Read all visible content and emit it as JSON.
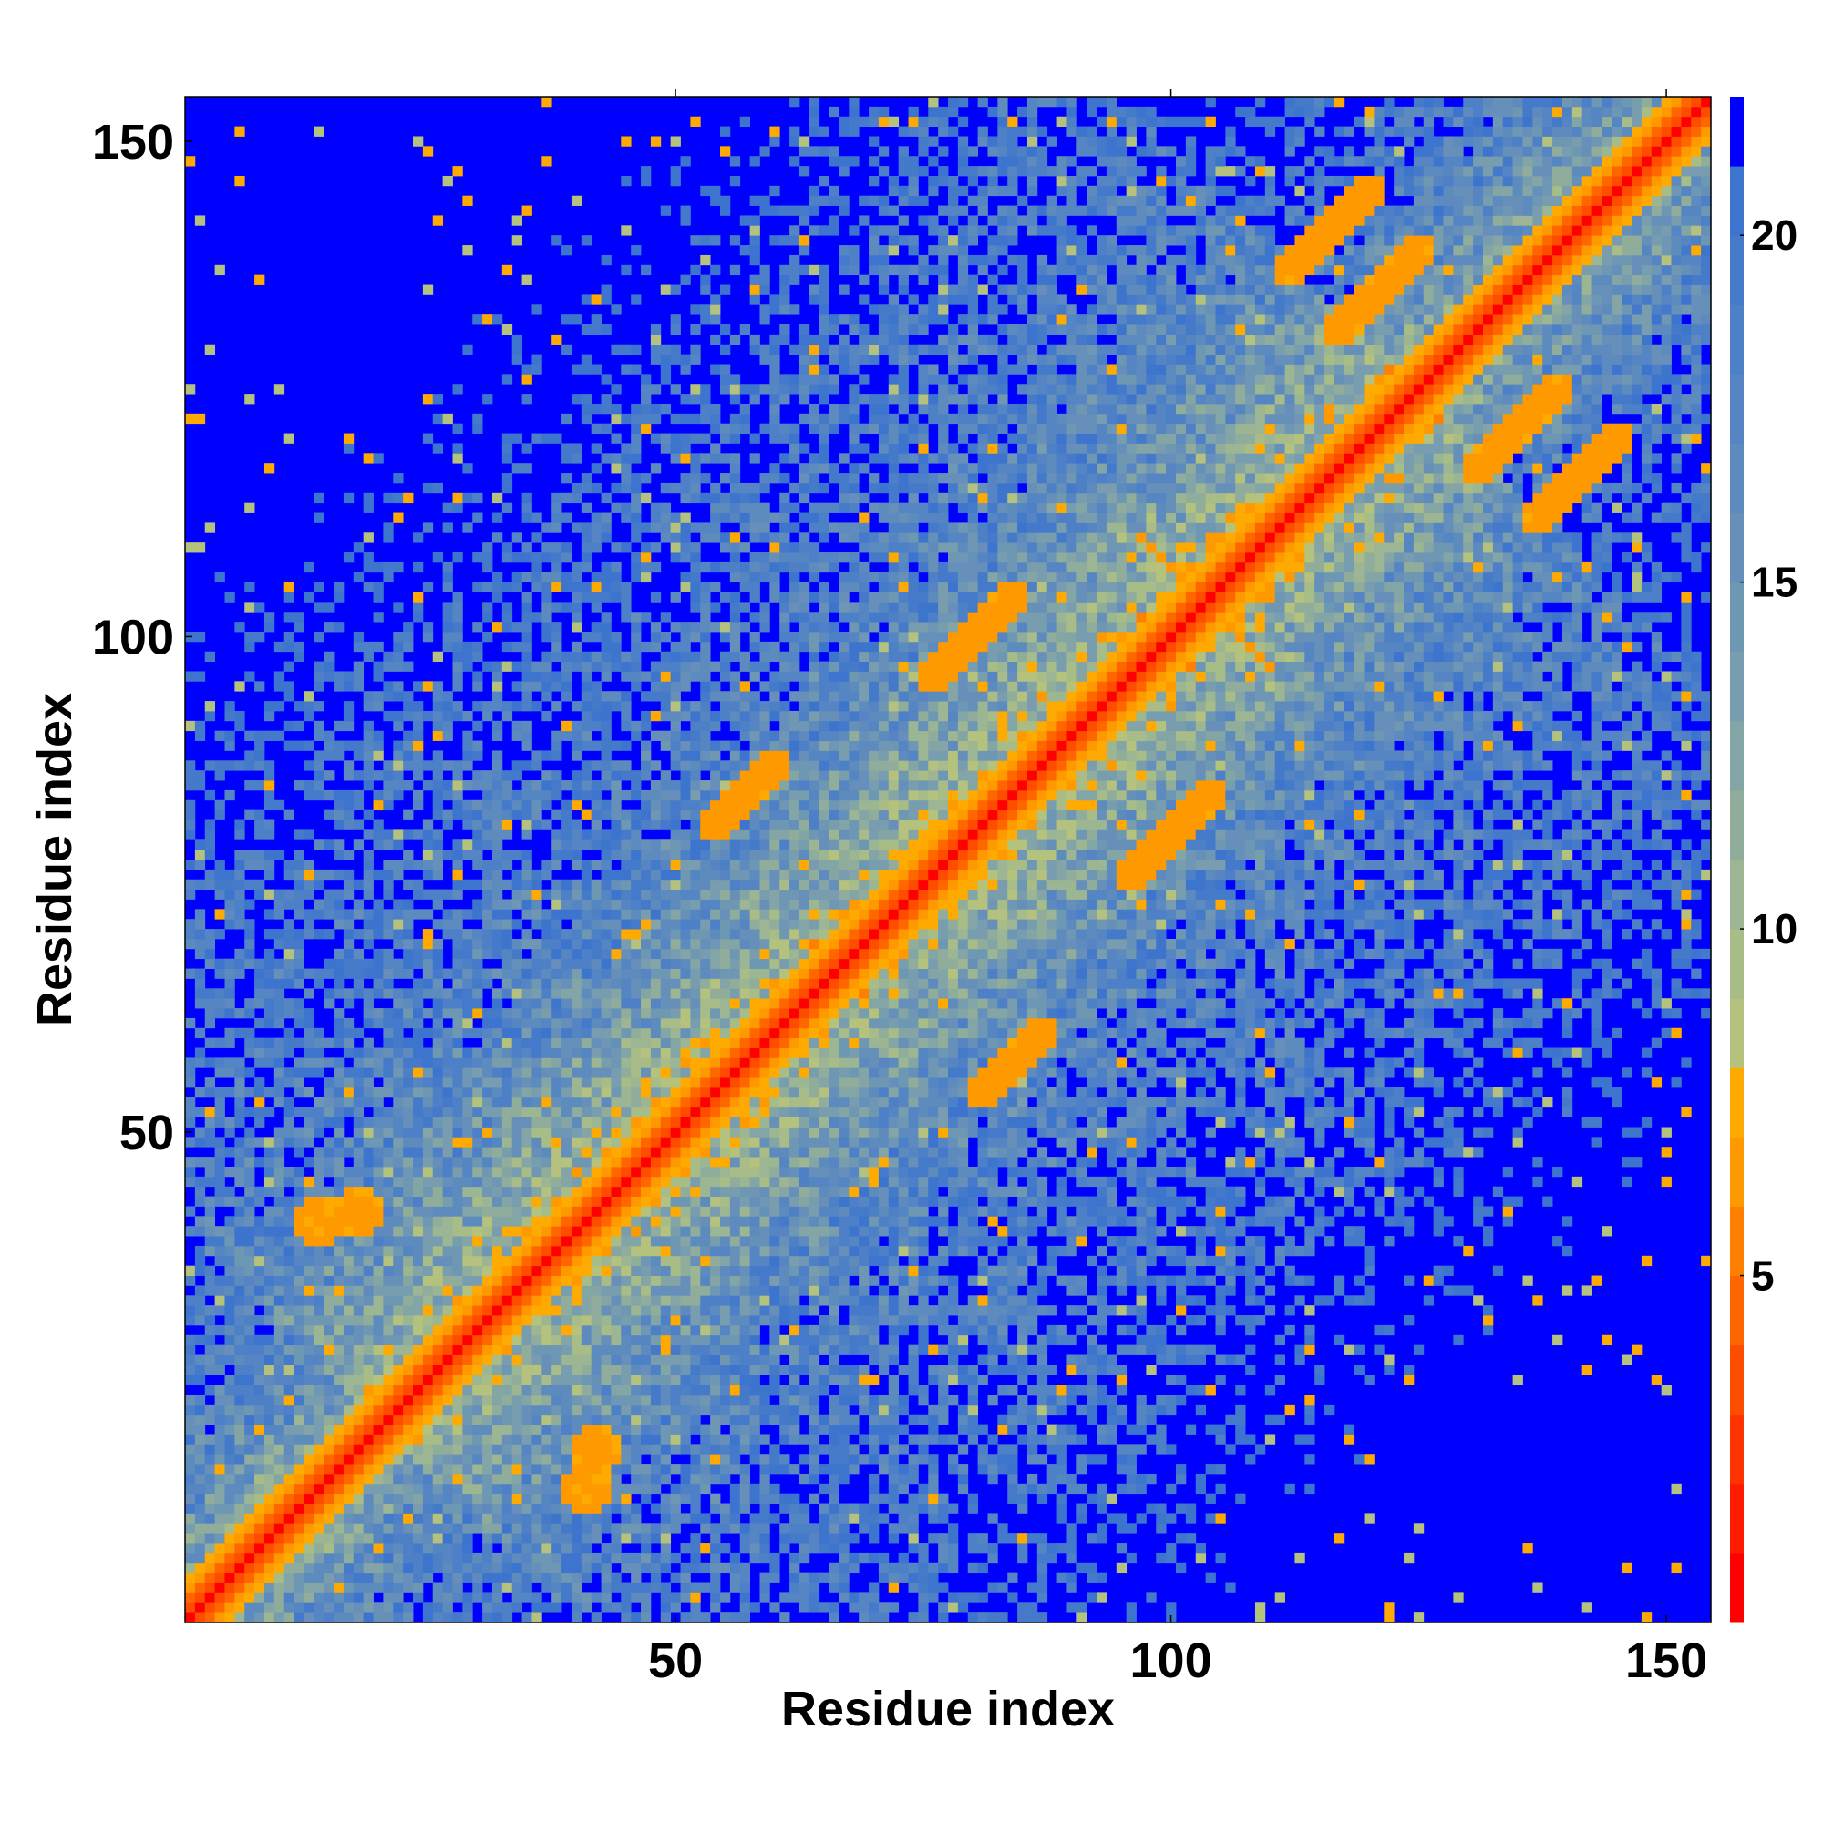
{
  "chart_data": {
    "type": "heatmap",
    "title": "",
    "xlabel": "Residue index",
    "ylabel": "Residue index",
    "n_residues": 154,
    "xlim": [
      0.5,
      154.5
    ],
    "ylim": [
      0.5,
      154.5
    ],
    "x_ticks": [
      50,
      100,
      150
    ],
    "x_tick_labels": [
      "50",
      "100",
      "150"
    ],
    "y_ticks": [
      50,
      100,
      150
    ],
    "y_tick_labels": [
      "50",
      "100",
      "150"
    ],
    "grid": false,
    "colorbar": {
      "position": "right",
      "range": [
        0,
        22
      ],
      "ticks": [
        5,
        10,
        15,
        20
      ],
      "tick_labels": [
        "5",
        "10",
        "15",
        "20"
      ],
      "bands": [
        {
          "from": 0,
          "to": 1,
          "color": "#ff0000"
        },
        {
          "from": 1,
          "to": 2,
          "color": "#ff1a00"
        },
        {
          "from": 2,
          "to": 3,
          "color": "#ff3300"
        },
        {
          "from": 3,
          "to": 4,
          "color": "#ff4d00"
        },
        {
          "from": 4,
          "to": 5,
          "color": "#ff6600"
        },
        {
          "from": 5,
          "to": 6,
          "color": "#ff8000"
        },
        {
          "from": 6,
          "to": 7,
          "color": "#ff9900"
        },
        {
          "from": 7,
          "to": 8,
          "color": "#ffaa00"
        },
        {
          "from": 8,
          "to": 9,
          "color": "#b5c27e"
        },
        {
          "from": 9,
          "to": 10,
          "color": "#a8bc88"
        },
        {
          "from": 10,
          "to": 11,
          "color": "#9cb592"
        },
        {
          "from": 11,
          "to": 12,
          "color": "#90ad9c"
        },
        {
          "from": 12,
          "to": 13,
          "color": "#84a5a6"
        },
        {
          "from": 13,
          "to": 14,
          "color": "#789dae"
        },
        {
          "from": 14,
          "to": 15,
          "color": "#6e97b4"
        },
        {
          "from": 15,
          "to": 16,
          "color": "#6690ba"
        },
        {
          "from": 16,
          "to": 17,
          "color": "#5d8bbe"
        },
        {
          "from": 17,
          "to": 18,
          "color": "#5585c2"
        },
        {
          "from": 18,
          "to": 19,
          "color": "#4d80c6"
        },
        {
          "from": 19,
          "to": 20,
          "color": "#457aca"
        },
        {
          "from": 20,
          "to": 21,
          "color": "#3d74ce"
        },
        {
          "from": 21,
          "to": 22,
          "color": "#0000ff"
        }
      ]
    },
    "values_description": "symmetric residue-residue distance map; cells at or above 21 shown as background",
    "diagonal_distance": 0,
    "background_value": 22,
    "contact_features": [
      {
        "type": "anti-diagonal",
        "center_x": 103,
        "center_y": 104,
        "half_length": 6,
        "value": 6
      },
      {
        "type": "parallel",
        "x_start": 54,
        "y_start": 81,
        "x_end": 60,
        "y_end": 87,
        "value": 6
      },
      {
        "type": "parallel",
        "x_start": 81,
        "y_start": 54,
        "x_end": 87,
        "y_end": 60,
        "value": 6
      },
      {
        "type": "parallel",
        "x_start": 76,
        "y_start": 96,
        "x_end": 84,
        "y_end": 104,
        "value": 6
      },
      {
        "type": "parallel",
        "x_start": 96,
        "y_start": 76,
        "x_end": 104,
        "y_end": 84,
        "value": 6
      },
      {
        "type": "blob",
        "center_x": 14,
        "center_y": 41,
        "radius": 2.5,
        "value": 6
      },
      {
        "type": "blob",
        "center_x": 41,
        "center_y": 14,
        "radius": 2.5,
        "value": 6
      },
      {
        "type": "blob",
        "center_x": 42,
        "center_y": 18,
        "radius": 2.5,
        "value": 6
      },
      {
        "type": "blob",
        "center_x": 18,
        "center_y": 42,
        "radius": 2.5,
        "value": 6
      },
      {
        "type": "parallel",
        "x_start": 117,
        "y_start": 131,
        "x_end": 125,
        "y_end": 139,
        "value": 6
      },
      {
        "type": "parallel",
        "x_start": 131,
        "y_start": 117,
        "x_end": 139,
        "y_end": 125,
        "value": 6
      },
      {
        "type": "parallel",
        "x_start": 137,
        "y_start": 112,
        "x_end": 145,
        "y_end": 120,
        "value": 6
      },
      {
        "type": "parallel",
        "x_start": 112,
        "y_start": 137,
        "x_end": 120,
        "y_end": 145,
        "value": 6
      }
    ]
  }
}
